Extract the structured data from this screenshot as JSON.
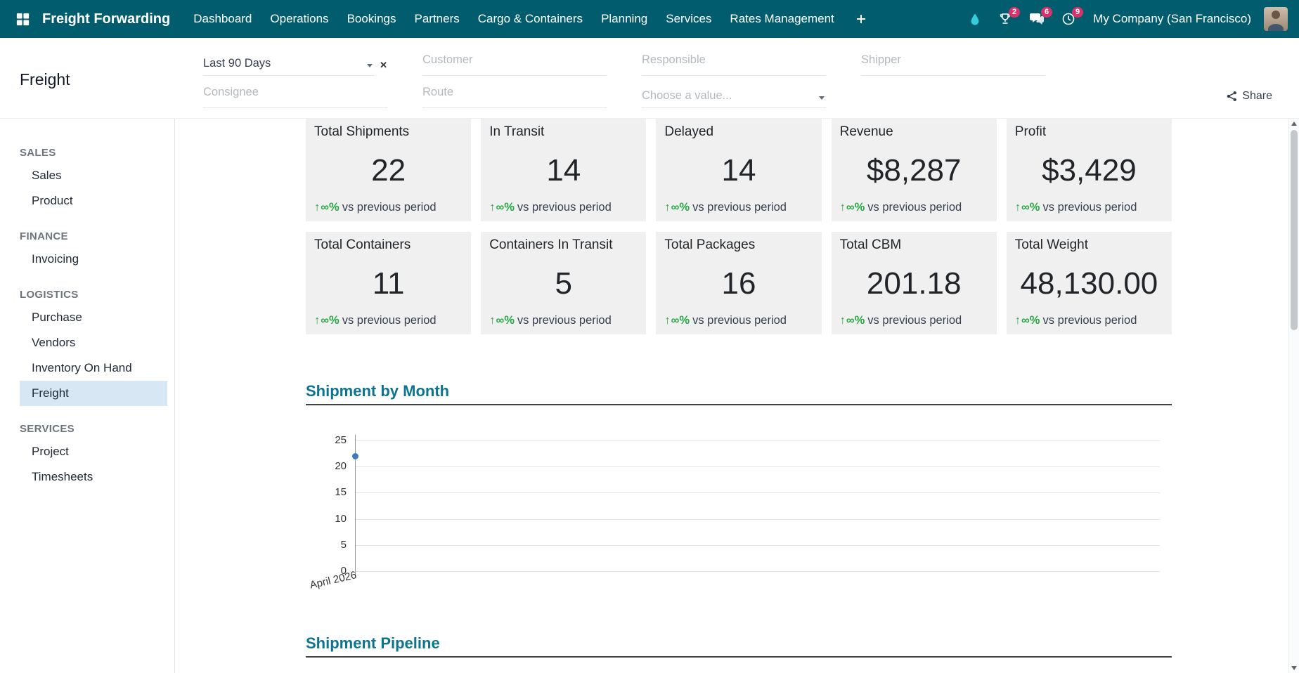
{
  "navbar": {
    "app_name": "Freight Forwarding",
    "menu": [
      "Dashboard",
      "Operations",
      "Bookings",
      "Partners",
      "Cargo & Containers",
      "Planning",
      "Services",
      "Rates Management"
    ],
    "badges": {
      "achievements": "2",
      "messages": "6",
      "activities": "9"
    },
    "company": "My Company (San Francisco)"
  },
  "control_panel": {
    "title": "Freight",
    "filters": {
      "date_range_value": "Last 90 Days",
      "customer": "Customer",
      "responsible": "Responsible",
      "shipper": "Shipper",
      "consignee": "Consignee",
      "route": "Route",
      "choose_value": "Choose a value..."
    },
    "share": "Share"
  },
  "sidebar": {
    "active_item": "Freight",
    "sections": [
      {
        "label": "SALES",
        "items": [
          "Sales",
          "Product"
        ]
      },
      {
        "label": "FINANCE",
        "items": [
          "Invoicing"
        ]
      },
      {
        "label": "LOGISTICS",
        "items": [
          "Purchase",
          "Vendors",
          "Inventory On Hand",
          "Freight"
        ]
      },
      {
        "label": "SERVICES",
        "items": [
          "Project",
          "Timesheets"
        ]
      }
    ]
  },
  "kpis": {
    "delta_arrow": "↑",
    "delta_value": "∞%",
    "delta_suffix": "vs previous period",
    "cards": [
      {
        "label": "Total Shipments",
        "value": "22"
      },
      {
        "label": "In Transit",
        "value": "14"
      },
      {
        "label": "Delayed",
        "value": "14"
      },
      {
        "label": "Revenue",
        "value": "$8,287"
      },
      {
        "label": "Profit",
        "value": "$3,429"
      },
      {
        "label": "Total Containers",
        "value": "11"
      },
      {
        "label": "Containers In Transit",
        "value": "5"
      },
      {
        "label": "Total Packages",
        "value": "16"
      },
      {
        "label": "Total CBM",
        "value": "201.18"
      },
      {
        "label": "Total Weight",
        "value": "48,130.00"
      }
    ]
  },
  "sections": {
    "by_month_title": "Shipment by Month",
    "pipeline_title": "Shipment Pipeline"
  },
  "chart_data": {
    "type": "line",
    "title": "Shipment by Month",
    "x": [
      "April 2026"
    ],
    "series": [
      {
        "name": "Shipments",
        "values": [
          22
        ]
      }
    ],
    "ylim": [
      0,
      25
    ],
    "yticks": [
      "25",
      "20",
      "15",
      "10",
      "5",
      "0"
    ],
    "grid": true,
    "legend": "none",
    "point_color": "#3d79bb"
  },
  "icons": {
    "clear": "✕"
  },
  "colors": {
    "navbar_bg": "#015d6d",
    "badge": "#d6336c",
    "accent_teal": "#0d7490",
    "positive_green": "#28a745",
    "active_item_bg": "#d7e7f3",
    "card_bg": "#f0f0f0"
  }
}
